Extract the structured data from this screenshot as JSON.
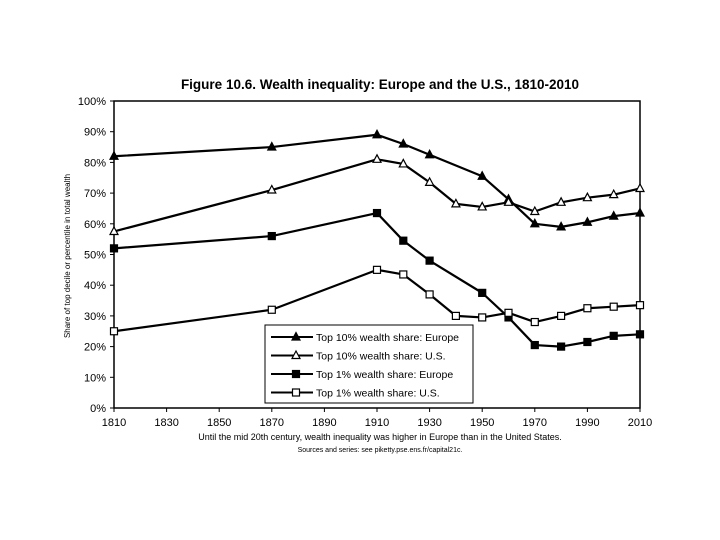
{
  "chart_data": {
    "type": "line",
    "title": "Figure 10.6. Wealth inequality: Europe and the U.S., 1810-2010",
    "ylabel": "Share of top decile or percentile in total wealth",
    "xlabel": "",
    "caption": "Until the mid 20th century, wealth inequality was higher in Europe than in the United States.",
    "source": "Sources and series: see piketty.pse.ens.fr/capital21c.",
    "xlim": [
      1810,
      2010
    ],
    "ylim": [
      0,
      100
    ],
    "x_ticks": [
      "1810",
      "1830",
      "1850",
      "1870",
      "1890",
      "1910",
      "1930",
      "1950",
      "1970",
      "1990",
      "2010"
    ],
    "y_ticks": [
      "0%",
      "10%",
      "20%",
      "30%",
      "40%",
      "50%",
      "60%",
      "70%",
      "80%",
      "90%",
      "100%"
    ],
    "grid": false,
    "legend_position": "bottom-center",
    "series": [
      {
        "name": "Top 10% wealth share: Europe",
        "marker": "filled-triangle",
        "color": "#000000",
        "x": [
          1810,
          1870,
          1910,
          1920,
          1930,
          1950,
          1960,
          1970,
          1980,
          1990,
          2000,
          2010
        ],
        "y": [
          82,
          85,
          89,
          86,
          82.5,
          75.5,
          68,
          60,
          59,
          60.5,
          62.5,
          63.5
        ]
      },
      {
        "name": "Top 10% wealth share: U.S.",
        "marker": "open-triangle",
        "color": "#000000",
        "x": [
          1810,
          1870,
          1910,
          1920,
          1930,
          1940,
          1950,
          1960,
          1970,
          1980,
          1990,
          2000,
          2010
        ],
        "y": [
          57.5,
          71,
          81,
          79.5,
          73.5,
          66.5,
          65.5,
          67,
          64,
          67,
          68.5,
          69.5,
          71.5
        ]
      },
      {
        "name": "Top 1% wealth share: Europe",
        "marker": "filled-square",
        "color": "#000000",
        "x": [
          1810,
          1870,
          1910,
          1920,
          1930,
          1950,
          1960,
          1970,
          1980,
          1990,
          2000,
          2010
        ],
        "y": [
          52,
          56,
          63.5,
          54.5,
          48,
          37.5,
          29.5,
          20.5,
          20,
          21.5,
          23.5,
          24
        ]
      },
      {
        "name": "Top 1% wealth share: U.S.",
        "marker": "open-square",
        "color": "#000000",
        "x": [
          1810,
          1870,
          1910,
          1920,
          1930,
          1940,
          1950,
          1960,
          1970,
          1980,
          1990,
          2000,
          2010
        ],
        "y": [
          25,
          32,
          45,
          43.5,
          37,
          30,
          29.5,
          31,
          28,
          30,
          32.5,
          33,
          33.5
        ]
      }
    ]
  }
}
